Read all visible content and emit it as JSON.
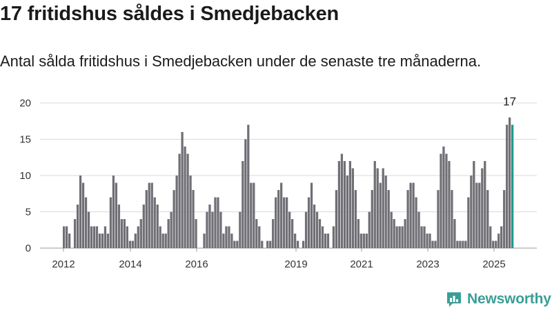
{
  "header": {
    "title": "17 fritidshus såldes i Smedjebacken",
    "subtitle": "Antal sålda fritidshus i Smedjebacken under de senaste tre månaderna."
  },
  "brand": {
    "name": "Newsworthy"
  },
  "colors": {
    "bar": "#6f6f75",
    "highlight": "#1f9a8e",
    "grid": "#d9d9d9",
    "brand": "#3a9e96"
  },
  "chart_data": {
    "type": "bar",
    "title": "17 fritidshus såldes i Smedjebacken",
    "subtitle": "Antal sålda fritidshus i Smedjebacken under de senaste tre månaderna.",
    "xlabel": "",
    "ylabel": "",
    "ylim": [
      0,
      20
    ],
    "yticks": [
      0,
      5,
      10,
      15,
      20
    ],
    "xticks": [
      "2012",
      "2014",
      "2016",
      "2019",
      "2021",
      "2023",
      "2025"
    ],
    "grid": true,
    "values": [
      3,
      3,
      2,
      0,
      4,
      6,
      10,
      9,
      7,
      5,
      3,
      3,
      3,
      2,
      2,
      3,
      2,
      7,
      10,
      9,
      6,
      4,
      4,
      3,
      1,
      1,
      2,
      3,
      4,
      6,
      8,
      9,
      9,
      7,
      6,
      3,
      2,
      2,
      4,
      5,
      8,
      10,
      13,
      16,
      14,
      13,
      10,
      8,
      4,
      0,
      0,
      2,
      5,
      6,
      5,
      7,
      7,
      5,
      2,
      3,
      3,
      2,
      1,
      1,
      5,
      12,
      15,
      17,
      9,
      9,
      4,
      3,
      1,
      0,
      1,
      1,
      4,
      7,
      8,
      9,
      7,
      7,
      5,
      4,
      2,
      1,
      0,
      1,
      5,
      7,
      9,
      6,
      5,
      4,
      3,
      2,
      2,
      0,
      3,
      8,
      12,
      13,
      12,
      10,
      12,
      11,
      8,
      4,
      2,
      2,
      2,
      5,
      8,
      12,
      11,
      9,
      11,
      10,
      8,
      5,
      4,
      3,
      3,
      3,
      4,
      8,
      9,
      9,
      7,
      5,
      3,
      3,
      2,
      2,
      1,
      1,
      8,
      13,
      14,
      13,
      12,
      8,
      4,
      1,
      1,
      1,
      1,
      7,
      10,
      12,
      9,
      9,
      11,
      12,
      8,
      3,
      1,
      1,
      2,
      3,
      8,
      17,
      18,
      17
    ],
    "highlight_last": true,
    "annotations": [
      {
        "label": "17"
      }
    ]
  }
}
